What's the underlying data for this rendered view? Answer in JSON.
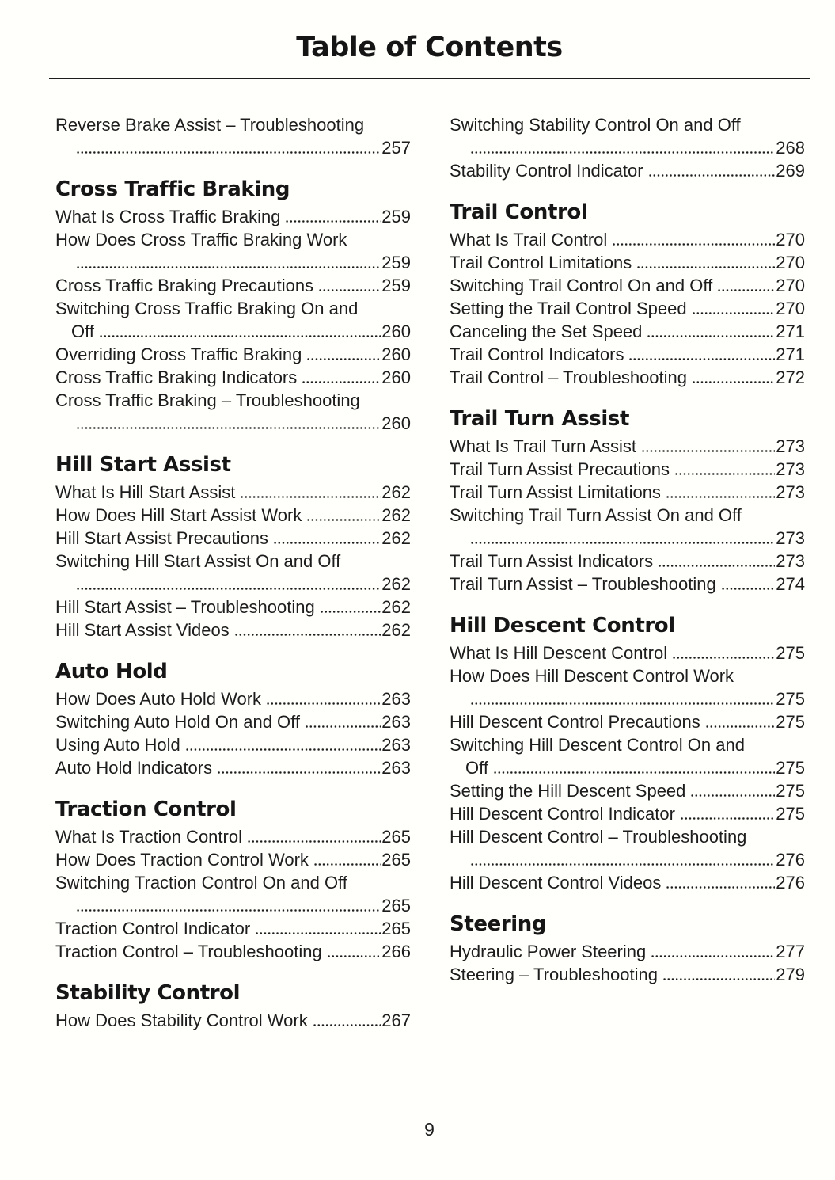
{
  "page": {
    "title": "Table of Contents",
    "footer_page_number": "9",
    "text_color": "#1d1d1d",
    "background_color": "#fffffc"
  },
  "columns": [
    {
      "name": "left",
      "sections": [
        {
          "heading": null,
          "entries": [
            {
              "label": "Reverse Brake Assist – Troubleshooting",
              "page": "257",
              "wrap": true
            }
          ]
        },
        {
          "heading": "Cross Traffic Braking",
          "entries": [
            {
              "label": "What Is Cross Traffic Braking",
              "page": "259"
            },
            {
              "label": "How Does Cross Traffic Braking Work",
              "page": "259",
              "wrap": true
            },
            {
              "label": "Cross Traffic Braking Precautions",
              "page": "259"
            },
            {
              "label": "Switching Cross Traffic Braking On and",
              "label2": "Off",
              "page": "260",
              "wrap": true
            },
            {
              "label": "Overriding Cross Traffic Braking",
              "page": "260"
            },
            {
              "label": "Cross Traffic Braking Indicators",
              "page": "260"
            },
            {
              "label": "Cross Traffic Braking – Troubleshooting",
              "page": "260",
              "wrap": true
            }
          ]
        },
        {
          "heading": "Hill Start Assist",
          "entries": [
            {
              "label": "What Is Hill Start Assist",
              "page": "262"
            },
            {
              "label": "How Does Hill Start Assist Work",
              "page": "262"
            },
            {
              "label": "Hill Start Assist Precautions",
              "page": "262"
            },
            {
              "label": "Switching Hill Start Assist On and Off",
              "page": "262",
              "wrap": true
            },
            {
              "label": "Hill Start Assist – Troubleshooting",
              "page": "262"
            },
            {
              "label": "Hill Start Assist Videos",
              "page": "262"
            }
          ]
        },
        {
          "heading": "Auto Hold",
          "entries": [
            {
              "label": "How Does Auto Hold Work",
              "page": "263"
            },
            {
              "label": "Switching Auto Hold On and Off",
              "page": "263"
            },
            {
              "label": "Using Auto Hold",
              "page": "263"
            },
            {
              "label": "Auto Hold Indicators",
              "page": "263"
            }
          ]
        },
        {
          "heading": "Traction Control",
          "entries": [
            {
              "label": "What Is Traction Control",
              "page": "265"
            },
            {
              "label": "How Does Traction Control Work",
              "page": "265"
            },
            {
              "label": "Switching Traction Control On and Off",
              "page": "265",
              "wrap": true
            },
            {
              "label": "Traction Control Indicator",
              "page": "265"
            },
            {
              "label": "Traction Control – Troubleshooting",
              "page": "266"
            }
          ]
        },
        {
          "heading": "Stability Control",
          "entries": [
            {
              "label": "How Does Stability Control Work",
              "page": "267"
            }
          ]
        }
      ]
    },
    {
      "name": "right",
      "sections": [
        {
          "heading": null,
          "entries": [
            {
              "label": "Switching Stability Control On and Off",
              "page": "268",
              "wrap": true
            },
            {
              "label": "Stability Control Indicator",
              "page": "269"
            }
          ]
        },
        {
          "heading": "Trail Control",
          "entries": [
            {
              "label": "What Is Trail Control",
              "page": "270"
            },
            {
              "label": "Trail Control Limitations",
              "page": "270"
            },
            {
              "label": "Switching Trail Control On and Off",
              "page": "270"
            },
            {
              "label": "Setting the Trail Control Speed",
              "page": "270"
            },
            {
              "label": "Canceling the Set Speed",
              "page": "271"
            },
            {
              "label": "Trail Control Indicators",
              "page": "271"
            },
            {
              "label": "Trail Control – Troubleshooting",
              "page": "272"
            }
          ]
        },
        {
          "heading": "Trail Turn Assist",
          "entries": [
            {
              "label": "What Is Trail Turn Assist",
              "page": "273"
            },
            {
              "label": "Trail Turn Assist Precautions",
              "page": "273"
            },
            {
              "label": "Trail Turn Assist Limitations",
              "page": "273"
            },
            {
              "label": "Switching Trail Turn Assist On and Off",
              "page": "273",
              "wrap": true
            },
            {
              "label": "Trail Turn Assist Indicators",
              "page": "273"
            },
            {
              "label": "Trail Turn Assist – Troubleshooting",
              "page": "274"
            }
          ]
        },
        {
          "heading": "Hill Descent Control",
          "entries": [
            {
              "label": "What Is Hill Descent Control",
              "page": "275"
            },
            {
              "label": "How Does Hill Descent Control Work",
              "page": "275",
              "wrap": true
            },
            {
              "label": "Hill Descent Control Precautions",
              "page": "275"
            },
            {
              "label": "Switching Hill Descent Control On and",
              "label2": "Off",
              "page": "275",
              "wrap": true
            },
            {
              "label": "Setting the Hill Descent Speed",
              "page": "275"
            },
            {
              "label": "Hill Descent Control Indicator",
              "page": "275"
            },
            {
              "label": "Hill Descent Control – Troubleshooting",
              "page": "276",
              "wrap": true
            },
            {
              "label": "Hill Descent Control Videos",
              "page": "276"
            }
          ]
        },
        {
          "heading": "Steering",
          "entries": [
            {
              "label": "Hydraulic Power Steering",
              "page": "277"
            },
            {
              "label": "Steering – Troubleshooting",
              "page": "279"
            }
          ]
        }
      ]
    }
  ]
}
